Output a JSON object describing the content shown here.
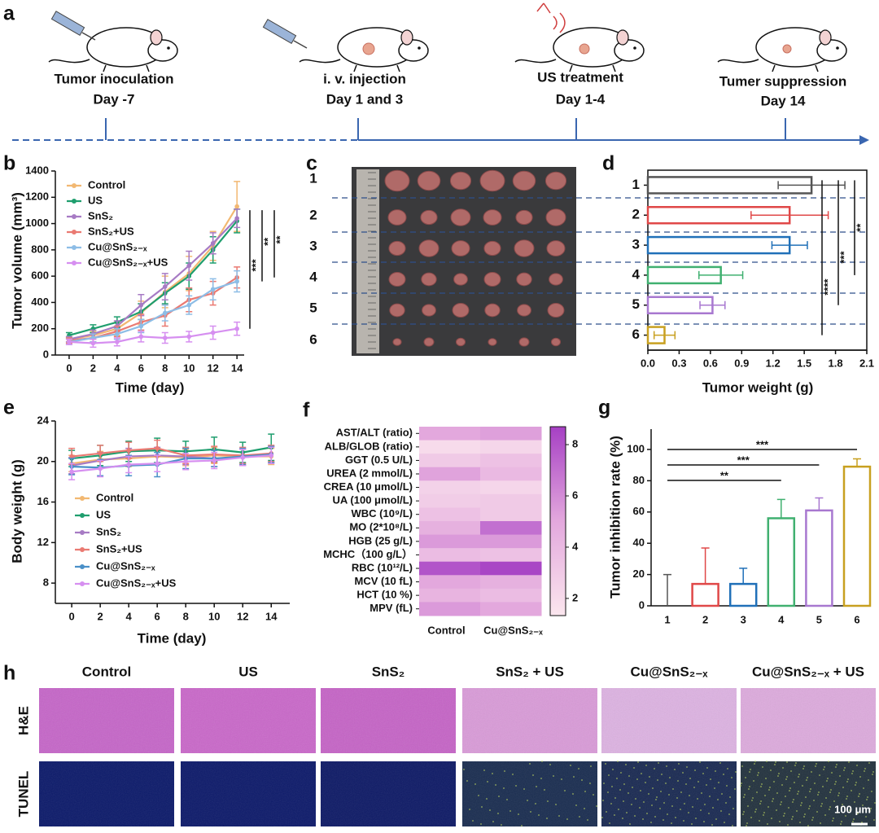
{
  "timeline": {
    "panel": "a",
    "events": [
      {
        "title": "Tumor inoculation",
        "day": "Day -7"
      },
      {
        "title": "i. v. injection",
        "day": "Day 1 and 3"
      },
      {
        "title": "US treatment",
        "day": "Day 1-4"
      },
      {
        "title": "Tumer suppression",
        "day": "Day 14"
      }
    ]
  },
  "photo": {
    "panel": "c",
    "rows": [
      "1",
      "2",
      "3",
      "4",
      "5",
      "6"
    ]
  },
  "chart_data": [
    {
      "type": "line",
      "panel": "b",
      "x_label": "Time (day)",
      "y_label": "Tumor volume (mm³)",
      "x": [
        0,
        2,
        4,
        6,
        8,
        10,
        12,
        14
      ],
      "xlim": [
        -1.15,
        14.6
      ],
      "xticks": [
        0,
        2,
        4,
        6,
        8,
        10,
        12,
        14
      ],
      "ylim": [
        0,
        1400
      ],
      "yticks": [
        0,
        200,
        400,
        600,
        800,
        1000,
        1200,
        1400
      ],
      "series": [
        {
          "name": "Control",
          "color": "#f2b872",
          "values": [
            120,
            150,
            200,
            320,
            480,
            620,
            830,
            1130
          ],
          "errors": [
            20,
            30,
            50,
            90,
            120,
            130,
            110,
            190
          ]
        },
        {
          "name": "US",
          "color": "#1f9e6e",
          "values": [
            150,
            200,
            250,
            330,
            470,
            600,
            800,
            1020
          ],
          "errors": [
            20,
            30,
            40,
            60,
            80,
            100,
            100,
            90
          ]
        },
        {
          "name": "SnS₂",
          "color": "#a77bc4",
          "values": [
            120,
            160,
            220,
            380,
            520,
            680,
            850,
            1040
          ],
          "errors": [
            20,
            30,
            40,
            80,
            100,
            110,
            80,
            70
          ]
        },
        {
          "name": "SnS₂+US",
          "color": "#ea7a72",
          "values": [
            110,
            130,
            180,
            250,
            300,
            420,
            470,
            590
          ],
          "errors": [
            20,
            30,
            40,
            60,
            80,
            90,
            90,
            80
          ]
        },
        {
          "name": "Cu@SnS₂₋ₓ",
          "color": "#8dbde6",
          "values": [
            100,
            130,
            160,
            220,
            320,
            380,
            500,
            560
          ],
          "errors": [
            20,
            30,
            40,
            50,
            60,
            70,
            80,
            80
          ]
        },
        {
          "name": "Cu@SnS₂₋ₓ+US",
          "color": "#d68ff0",
          "values": [
            100,
            90,
            100,
            140,
            130,
            140,
            170,
            200
          ],
          "errors": [
            20,
            30,
            30,
            40,
            40,
            40,
            50,
            50
          ]
        }
      ],
      "significance": [
        {
          "label": "***",
          "between": [
            2,
            5
          ]
        },
        {
          "label": "**",
          "between": [
            2,
            4
          ]
        },
        {
          "label": "**",
          "between": [
            2,
            3
          ]
        }
      ]
    },
    {
      "type": "barh",
      "panel": "d",
      "x_label": "Tumor weight (g)",
      "categories": [
        "1",
        "2",
        "3",
        "4",
        "5",
        "6"
      ],
      "values": [
        1.57,
        1.36,
        1.36,
        0.7,
        0.62,
        0.16
      ],
      "errors": [
        0.32,
        0.37,
        0.17,
        0.21,
        0.12,
        0.1
      ],
      "colors": [
        "#555555",
        "#e04848",
        "#2070b8",
        "#40b070",
        "#a878d0",
        "#c8a020"
      ],
      "xlim": [
        0,
        2.1
      ],
      "xticks": [
        {
          "value": 0,
          "label": "0.0"
        },
        0.3,
        0.6,
        0.9,
        1.2,
        1.5,
        1.8,
        2.1
      ],
      "significance": [
        {
          "label": "****",
          "between": [
            0,
            5
          ]
        },
        {
          "label": "***",
          "between": [
            0,
            4
          ]
        },
        {
          "label": "**",
          "between": [
            0,
            3
          ]
        }
      ]
    },
    {
      "type": "line",
      "panel": "e",
      "x_label": "Time (day)",
      "y_label": "Body weight (g)",
      "x": [
        0,
        2,
        4,
        6,
        8,
        10,
        12,
        14
      ],
      "xlim": [
        -1.15,
        15.3
      ],
      "xticks": [
        0,
        2,
        4,
        6,
        8,
        10,
        12,
        14
      ],
      "ylim": [
        6,
        24
      ],
      "yticks": [
        8,
        12,
        16,
        20,
        24
      ],
      "series": [
        {
          "name": "Control",
          "color": "#f2b872",
          "values": [
            19.8,
            20.2,
            20.3,
            20.5,
            20.4,
            20.6,
            20.5,
            20.5
          ],
          "errors": [
            0.8,
            0.8,
            0.8,
            0.8,
            0.8,
            0.8,
            0.8,
            0.8
          ]
        },
        {
          "name": "US",
          "color": "#1f9e6e",
          "values": [
            20.3,
            20.6,
            21.0,
            21.1,
            21.0,
            21.2,
            20.9,
            21.4
          ],
          "errors": [
            0.8,
            1.0,
            1.0,
            1.2,
            1.0,
            1.2,
            1.0,
            1.3
          ]
        },
        {
          "name": "SnS₂",
          "color": "#a77bc4",
          "values": [
            19.6,
            20.1,
            20.5,
            20.6,
            20.5,
            20.3,
            20.4,
            20.7
          ],
          "errors": [
            0.8,
            0.8,
            0.8,
            0.8,
            0.8,
            0.8,
            0.8,
            0.8
          ]
        },
        {
          "name": "SnS₂+US",
          "color": "#ea7a72",
          "values": [
            20.5,
            20.8,
            21.1,
            21.3,
            20.6,
            20.7,
            20.6,
            20.8
          ],
          "errors": [
            0.8,
            0.8,
            0.8,
            0.8,
            0.8,
            0.8,
            0.8,
            0.8
          ]
        },
        {
          "name": "Cu@SnS₂₋ₓ",
          "color": "#4a90c8",
          "values": [
            19.5,
            19.4,
            19.6,
            19.7,
            20.3,
            20.3,
            20.5,
            20.7
          ],
          "errors": [
            0.8,
            0.8,
            1.0,
            1.2,
            1.0,
            0.8,
            0.8,
            0.8
          ]
        },
        {
          "name": "Cu@SnS₂₋ₓ+US",
          "color": "#d68ff0",
          "values": [
            19.0,
            19.3,
            19.7,
            19.8,
            20.0,
            20.1,
            20.4,
            20.6
          ],
          "errors": [
            0.8,
            0.8,
            0.8,
            0.8,
            0.8,
            0.8,
            0.8,
            0.8
          ]
        }
      ]
    },
    {
      "type": "heatmap",
      "panel": "f",
      "rows": [
        "AST/ALT (ratio)",
        "ALB/GLOB (ratio)",
        "GGT (0.5 U/L)",
        "UREA (2 mmol/L)",
        "CREA (10 μmol/L)",
        "UA (100 μmol/L)",
        "WBC (10⁹/L)",
        "MO (2*10⁸/L)",
        "HGB (25 g/L)",
        "MCHC（100 g/L）",
        "RBC (10¹²/L)",
        "MCV (10 fL)",
        "HCT (10 %)",
        "MPV (fL)"
      ],
      "columns": [
        "Control",
        "Cu@SnS₂₋ₓ"
      ],
      "values": [
        [
          5.0,
          5.3
        ],
        [
          2.0,
          2.3
        ],
        [
          3.0,
          3.5
        ],
        [
          5.2,
          4.0
        ],
        [
          2.5,
          2.3
        ],
        [
          2.8,
          3.0
        ],
        [
          3.5,
          3.0
        ],
        [
          4.5,
          7.0
        ],
        [
          5.5,
          5.5
        ],
        [
          3.8,
          3.5
        ],
        [
          8.0,
          8.5
        ],
        [
          5.0,
          4.5
        ],
        [
          4.3,
          3.8
        ],
        [
          5.5,
          5.0
        ]
      ],
      "vlim": [
        1.33,
        8.7
      ],
      "colorbar_ticks": [
        2,
        4,
        6,
        8
      ],
      "colormap": [
        "#fbe6ee",
        "#e3a8dd",
        "#a640c4"
      ]
    },
    {
      "type": "bar",
      "panel": "g",
      "y_label": "Tumor inhibition rate (%)",
      "categories": [
        "1",
        "2",
        "3",
        "4",
        "5",
        "6"
      ],
      "values": [
        0,
        14,
        14,
        56,
        61,
        89
      ],
      "errors": [
        20,
        23,
        10,
        12,
        8,
        5
      ],
      "colors": [
        "#555555",
        "#e04848",
        "#2070b8",
        "#40b070",
        "#a878d0",
        "#c8a020"
      ],
      "ylim": [
        0,
        113
      ],
      "yticks": [
        0,
        20,
        40,
        60,
        80,
        100
      ],
      "significance": [
        {
          "label": "**",
          "between": [
            0,
            3
          ]
        },
        {
          "label": "***",
          "between": [
            0,
            4
          ]
        },
        {
          "label": "***",
          "between": [
            0,
            5
          ]
        }
      ]
    }
  ],
  "histology": {
    "panel": "h",
    "groups": [
      "Control",
      "US",
      "SnS₂",
      "SnS₂ + US",
      "Cu@SnS₂₋ₓ",
      "Cu@SnS₂₋ₓ + US"
    ],
    "stains": [
      "H&E",
      "TUNEL"
    ],
    "scale_bar": "100 μm"
  }
}
